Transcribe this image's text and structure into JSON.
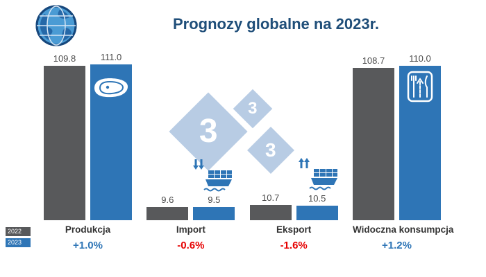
{
  "title": "Prognozy globalne na 2023r.",
  "colors": {
    "title": "#1f4e79",
    "bar_2022": "#58595b",
    "bar_2023": "#2e75b6",
    "positive_change": "#2e75b6",
    "negative_change": "#e60000",
    "watermark": "#b8cce4"
  },
  "legend": {
    "items": [
      {
        "label": "2022",
        "color": "#58595b"
      },
      {
        "label": "2023",
        "color": "#2e75b6"
      }
    ]
  },
  "watermark": {
    "digit": "3",
    "color": "#b8cce4"
  },
  "icons": {
    "globe": "globe-icon",
    "produkcja": "steak-meat-icon",
    "import": "cargo-ship-down-arrows-icon",
    "eksport": "cargo-ship-up-arrows-icon",
    "konsumpcja": "cutlery-consumption-icon"
  },
  "chart_data": {
    "type": "bar",
    "title": "Prognozy globalne na 2023r.",
    "categories": [
      "Produkcja",
      "Import",
      "Eksport",
      "Widoczna konsumpcja"
    ],
    "series": [
      {
        "name": "2022",
        "color": "#58595b",
        "values": [
          109.8,
          9.6,
          10.7,
          108.7
        ],
        "labels": [
          "109.8",
          "9.6",
          "10.7",
          "108.7"
        ]
      },
      {
        "name": "2023",
        "color": "#2e75b6",
        "values": [
          111.0,
          9.5,
          10.5,
          110.0
        ],
        "labels": [
          "111.0",
          "9.5",
          "10.5",
          "110.0"
        ]
      }
    ],
    "change": [
      {
        "label": "+1.0%",
        "color": "#2e75b6"
      },
      {
        "label": "-0.6%",
        "color": "#e60000"
      },
      {
        "label": "-1.6%",
        "color": "#e60000"
      },
      {
        "label": "+1.2%",
        "color": "#2e75b6"
      }
    ],
    "ylim": [
      0,
      111
    ],
    "grid": false,
    "value_labels": true,
    "legend_position": "bottom-left"
  }
}
